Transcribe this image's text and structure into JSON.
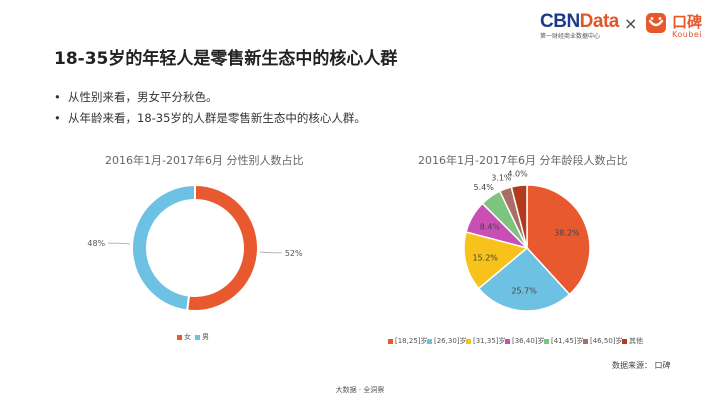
{
  "header": {
    "logo_left": "CBNData",
    "logo_left_sub": "第一财经商业数据中心",
    "separator": "×",
    "logo_right_cn": "口碑",
    "logo_right_en": "Koubei"
  },
  "title": "18-35岁的年轻人是零售新生态中的核心人群",
  "bullets": [
    "从性别来看，男女平分秋色。",
    "从年龄来看，18-35岁的人群是零售新生态中的核心人群。"
  ],
  "bullet_icon": "•",
  "colors": {
    "female": "#e8592f",
    "male": "#6dc1e3",
    "18_25": "#e8592f",
    "26_30": "#6dc1e3",
    "31_35": "#f6c21b",
    "36_40": "#c94fb5",
    "41_45": "#7dc47f",
    "46_50": "#a86f67",
    "other": "#b23a1d"
  },
  "chart_data": [
    {
      "type": "pie",
      "donut": true,
      "title": "2016年1月-2017年6月 分性别人数占比",
      "labels": [
        "女",
        "男"
      ],
      "values": [
        52,
        48
      ],
      "value_labels": [
        "52%",
        "48%"
      ],
      "legend": [
        "女",
        "男"
      ]
    },
    {
      "type": "pie",
      "title": "2016年1月-2017年6月 分年龄段人数占比",
      "labels": [
        "[18,25]岁",
        "[26,30]岁",
        "[31,35]岁",
        "[36,40]岁",
        "[41,45]岁",
        "[46,50]岁",
        "其他"
      ],
      "values": [
        38.2,
        25.7,
        15.2,
        8.4,
        5.4,
        3.1,
        4.0
      ],
      "value_labels": [
        "38.2%",
        "25.7%",
        "15.2%",
        "8.4%",
        "5.4%",
        "3.1%",
        "4.0%"
      ],
      "legend": [
        "[18,25]岁",
        "[26,30]岁",
        "[31,35]岁",
        "[36,40]岁",
        "[41,45]岁",
        "[46,50]岁",
        "其他"
      ]
    }
  ],
  "source": "数据来源： 口碑",
  "footer": "大数据 · 全洞察"
}
